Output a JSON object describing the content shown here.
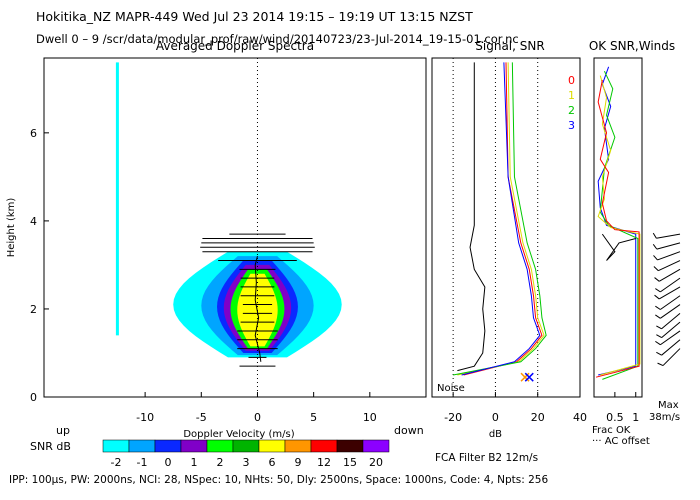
{
  "header": {
    "line1": "Hokitika_NZ  MAPR-449  Wed Jul 23 2014 19:15 – 19:19 UT 13:15 NZST",
    "line2": "Dwell  0 –  9   /scr/data/modular_prof/raw/wind/20140723/23-Jul-2014_19-15-01.cor.nc"
  },
  "footer": {
    "params": "IPP: 100µs,  PW: 2000ns,  NCI: 28,  NSpec: 10,  NHts: 50,  Dly: 2500ns,  Space: 1000ns,  Code: 4,  Npts: 256",
    "filter": "FCA Filter B2 12m/s"
  },
  "chart_data": [
    {
      "panel": "spectra",
      "type": "heatmap",
      "title": "Averaged Doppler Spectra",
      "xlabel": "Doppler Velocity (m/s)",
      "ylabel": "Height (km)",
      "xlim": [
        -19,
        15
      ],
      "ylim": [
        0,
        7.7
      ],
      "xticks": [
        -10,
        -5,
        0,
        5,
        10
      ],
      "yticks": [
        0,
        2,
        4,
        6
      ],
      "left_label": "up",
      "right_label": "down",
      "colorbar": {
        "label": "SNR dB",
        "ticks": [
          "-2",
          "-1",
          "0",
          "1",
          "2",
          "3",
          "6",
          "9",
          "12",
          "15",
          "20"
        ],
        "colors": [
          "#00ffff",
          "#00a5ff",
          "#0a28ff",
          "#8000c8",
          "#00ff00",
          "#00b400",
          "#ffff00",
          "#ff9600",
          "#ff0000",
          "#3c0000",
          "#8c00ff"
        ]
      },
      "spectral_width_bars": {
        "y": [
          0.7,
          0.9,
          1.1,
          1.3,
          1.5,
          1.7,
          1.9,
          2.1,
          2.3,
          2.5,
          2.7,
          2.9,
          3.1,
          3.3,
          3.4,
          3.5,
          3.6,
          3.7
        ],
        "half_width": [
          1.6,
          0.8,
          1.8,
          1.8,
          1.8,
          1.5,
          1.3,
          1.3,
          1.5,
          1.5,
          1.5,
          1.6,
          3.5,
          4.9,
          5.1,
          5.0,
          4.9,
          2.5
        ]
      },
      "mean_velocity": {
        "y": [
          0.8,
          1.0,
          1.4,
          1.8,
          2.2,
          2.6,
          3.0,
          3.2
        ],
        "x": [
          0.3,
          0.2,
          -0.2,
          0.1,
          -0.2,
          -0.1,
          -0.2,
          0.0
        ]
      }
    },
    {
      "panel": "signal",
      "type": "line",
      "title": "Signal, SNR",
      "xlabel": "dB",
      "xlim": [
        -30,
        40
      ],
      "ylim": [
        0,
        7.7
      ],
      "xticks": [
        -20,
        0,
        20,
        40
      ],
      "annotation": "Noise",
      "series": [
        {
          "color": "#000000",
          "values": [
            [
              -18,
              0.6
            ],
            [
              -10,
              0.7
            ],
            [
              -6,
              1.0
            ],
            [
              -5,
              1.5
            ],
            [
              -6,
              2.0
            ],
            [
              -5,
              2.5
            ],
            [
              -10,
              2.9
            ],
            [
              -12,
              3.4
            ],
            [
              -10,
              3.9
            ],
            [
              -10,
              7.6
            ]
          ]
        },
        {
          "color": "#ff0000",
          "values": [
            [
              -15,
              0.5
            ],
            [
              10,
              0.8
            ],
            [
              17,
              1.1
            ],
            [
              22,
              1.4
            ],
            [
              19,
              1.8
            ],
            [
              18,
              2.3
            ],
            [
              16,
              2.9
            ],
            [
              12,
              3.5
            ],
            [
              6,
              5.0
            ],
            [
              5,
              7.6
            ]
          ]
        },
        {
          "color": "#dcdc00",
          "values": [
            [
              -18,
              0.5
            ],
            [
              11,
              0.8
            ],
            [
              18,
              1.1
            ],
            [
              23,
              1.4
            ],
            [
              20,
              1.8
            ],
            [
              19,
              2.3
            ],
            [
              17,
              2.9
            ],
            [
              13,
              3.5
            ],
            [
              7,
              5.0
            ],
            [
              6,
              7.6
            ]
          ]
        },
        {
          "color": "#00c800",
          "values": [
            [
              -20,
              0.5
            ],
            [
              12,
              0.8
            ],
            [
              19,
              1.1
            ],
            [
              24,
              1.4
            ],
            [
              22,
              1.8
            ],
            [
              21,
              2.3
            ],
            [
              19,
              2.9
            ],
            [
              15,
              3.5
            ],
            [
              9,
              5.0
            ],
            [
              8,
              7.6
            ]
          ]
        },
        {
          "color": "#0000ff",
          "values": [
            [
              -16,
              0.5
            ],
            [
              9,
              0.8
            ],
            [
              16,
              1.1
            ],
            [
              21,
              1.4
            ],
            [
              18,
              1.8
            ],
            [
              17,
              2.3
            ],
            [
              15,
              2.9
            ],
            [
              11,
              3.5
            ],
            [
              6,
              5.0
            ],
            [
              4,
              7.6
            ]
          ]
        }
      ],
      "noise_markers": [
        {
          "x": 14,
          "color": "#ff9600"
        },
        {
          "x": 16,
          "color": "#0000ff"
        }
      ]
    },
    {
      "panel": "snr_winds",
      "type": "line",
      "title": "OK SNR,Winds",
      "xlabel": "Frac OK",
      "xlim": [
        0,
        1.15
      ],
      "ylim": [
        0,
        7.7
      ],
      "xticks": [
        "0.5",
        "1"
      ],
      "legend_note": "··· AC offset",
      "legend": [
        {
          "label": "0",
          "color": "#ff0000"
        },
        {
          "label": "1",
          "color": "#dcdc00"
        },
        {
          "label": "2",
          "color": "#00c800"
        },
        {
          "label": "3",
          "color": "#0000ff"
        }
      ],
      "wind_scale_label": [
        "Max",
        "38m/s"
      ],
      "series": [
        {
          "color": "#0000ff",
          "values": [
            [
              0.35,
              7.5
            ],
            [
              0.2,
              7.1
            ],
            [
              0.4,
              6.6
            ],
            [
              0.25,
              6.1
            ],
            [
              0.35,
              5.4
            ],
            [
              0.1,
              4.9
            ],
            [
              0.15,
              4.3
            ],
            [
              0.3,
              3.9
            ],
            [
              1.0,
              3.7
            ],
            [
              1.0,
              0.7
            ],
            [
              0.1,
              0.5
            ]
          ]
        },
        {
          "color": "#00c800",
          "values": [
            [
              0.25,
              7.4
            ],
            [
              0.45,
              7.0
            ],
            [
              0.3,
              6.4
            ],
            [
              0.5,
              5.9
            ],
            [
              0.25,
              5.2
            ],
            [
              0.2,
              4.7
            ],
            [
              0.15,
              4.2
            ],
            [
              0.35,
              3.9
            ],
            [
              1.05,
              3.6
            ],
            [
              1.05,
              0.7
            ],
            [
              0.2,
              0.4
            ]
          ]
        },
        {
          "color": "#dcdc00",
          "values": [
            [
              0.15,
              7.3
            ],
            [
              0.3,
              6.8
            ],
            [
              0.2,
              6.2
            ],
            [
              0.4,
              5.6
            ],
            [
              0.2,
              5.0
            ],
            [
              0.25,
              4.5
            ],
            [
              0.1,
              4.1
            ],
            [
              0.4,
              3.85
            ],
            [
              1.1,
              3.7
            ],
            [
              1.1,
              0.75
            ],
            [
              0.15,
              0.5
            ]
          ]
        },
        {
          "color": "#ff0000",
          "values": [
            [
              0.2,
              7.2
            ],
            [
              0.1,
              6.7
            ],
            [
              0.3,
              6.0
            ],
            [
              0.15,
              5.4
            ],
            [
              0.35,
              5.1
            ],
            [
              0.2,
              4.4
            ],
            [
              0.3,
              4.0
            ],
            [
              0.5,
              3.8
            ],
            [
              1.08,
              3.75
            ],
            [
              1.08,
              0.7
            ],
            [
              0.05,
              0.45
            ]
          ]
        },
        {
          "color": "#000000",
          "values": [
            [
              0.2,
              3.7
            ],
            [
              0.5,
              3.3
            ],
            [
              0.3,
              3.1
            ],
            [
              0.6,
              3.5
            ],
            [
              1.0,
              3.6
            ]
          ]
        }
      ],
      "wind_barbs": {
        "y": [
          1.1,
          1.3,
          1.5,
          1.7,
          1.9,
          2.1,
          2.3,
          2.5,
          2.7,
          2.9,
          3.1,
          3.3,
          3.5,
          3.7
        ],
        "angle_deg": [
          225,
          230,
          235,
          230,
          230,
          235,
          235,
          240,
          235,
          240,
          245,
          250,
          255,
          260
        ]
      }
    }
  ]
}
